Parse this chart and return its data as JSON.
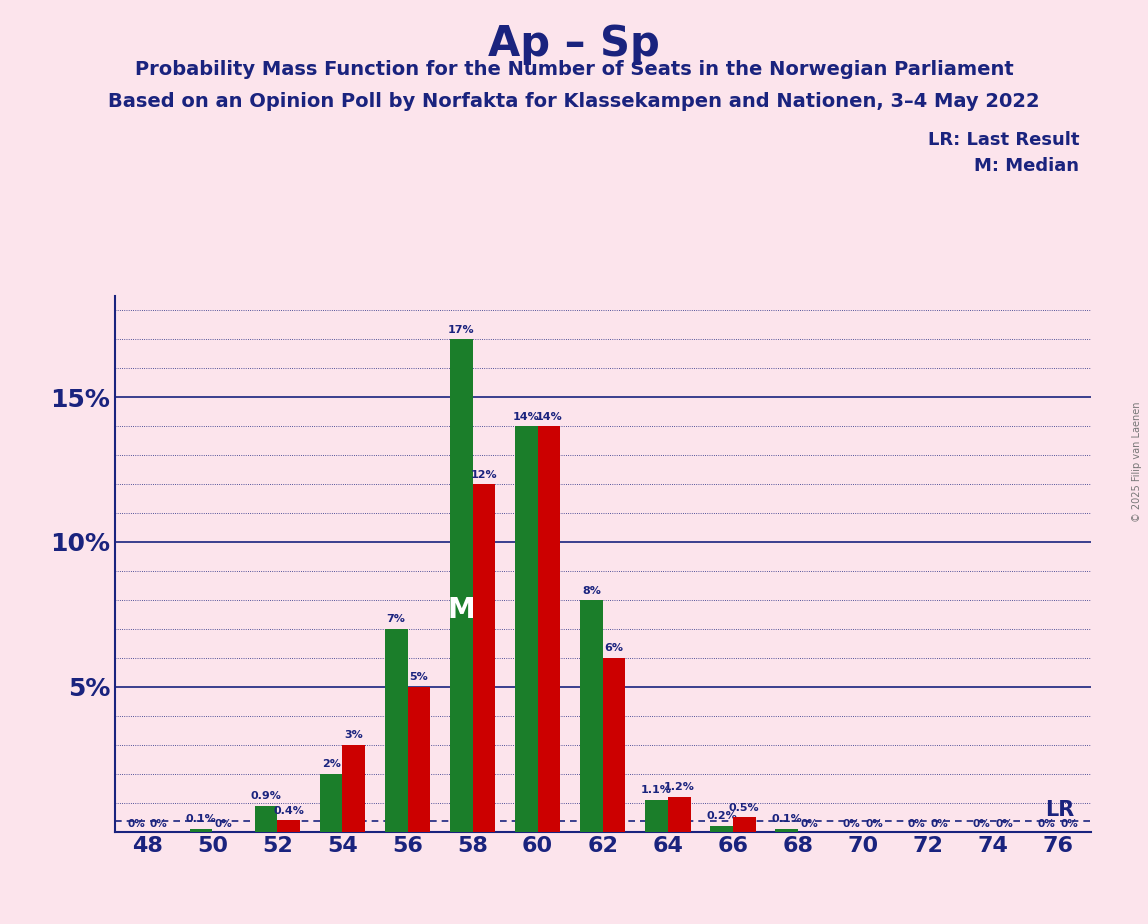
{
  "title": "Ap – Sp",
  "subtitle1": "Probability Mass Function for the Number of Seats in the Norwegian Parliament",
  "subtitle2": "Based on an Opinion Poll by Norfakta for Klassekampen and Nationen, 3–4 May 2022",
  "copyright": "© 2025 Filip van Laenen",
  "seats": [
    48,
    50,
    52,
    54,
    56,
    58,
    60,
    62,
    64,
    66,
    68,
    70,
    72,
    74,
    76
  ],
  "green_values": [
    0.0,
    0.001,
    0.009,
    0.02,
    0.07,
    0.17,
    0.14,
    0.08,
    0.011,
    0.002,
    0.001,
    0.0,
    0.0,
    0.0,
    0.0
  ],
  "red_values": [
    0.0,
    0.0,
    0.004,
    0.03,
    0.05,
    0.12,
    0.14,
    0.06,
    0.012,
    0.005,
    0.0,
    0.0,
    0.0,
    0.0,
    0.0
  ],
  "green_labels": [
    "0%",
    "0.1%",
    "0.9%",
    "2%",
    "7%",
    "17%",
    "14%",
    "8%",
    "1.1%",
    "0.2%",
    "0.1%",
    "0%",
    "0%",
    "0%",
    "0%"
  ],
  "red_labels": [
    "0%",
    "0%",
    "0.4%",
    "3%",
    "5%",
    "12%",
    "14%",
    "6%",
    "1.2%",
    "0.5%",
    "0%",
    "0%",
    "0%",
    "0%",
    "0%"
  ],
  "background_color": "#fce4ec",
  "green_color": "#1b7e2a",
  "red_color": "#cc0000",
  "title_color": "#1a237e",
  "axis_color": "#1a237e",
  "grid_color": "#1a237e",
  "lr_line_value": 0.0035,
  "median_seat": 58,
  "ylim_max": 0.185,
  "ytick_values": [
    0.05,
    0.1,
    0.15
  ],
  "ytick_labels": [
    "5%",
    "10%",
    "15%"
  ]
}
